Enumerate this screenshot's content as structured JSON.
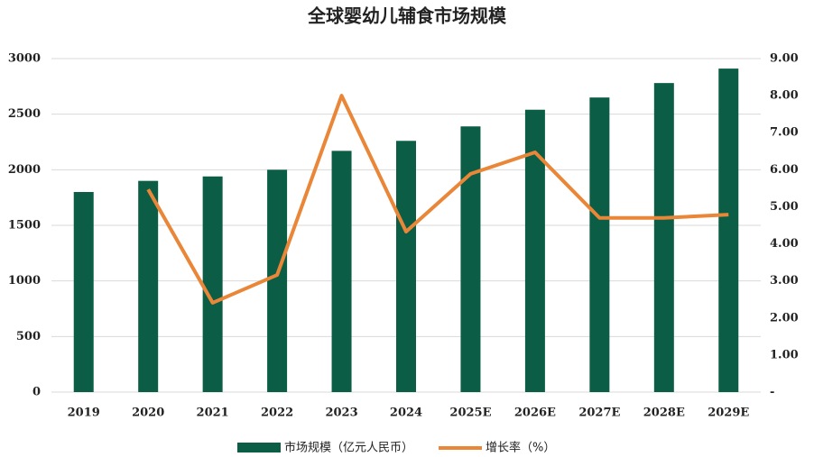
{
  "chart_data": {
    "type": "bar_line",
    "title": "全球婴幼儿辅食市场规模",
    "categories": [
      "2019",
      "2020",
      "2021",
      "2022",
      "2023",
      "2024",
      "2025E",
      "2026E",
      "2027E",
      "2028E",
      "2029E"
    ],
    "series": [
      {
        "name": "市场规模（亿元人民币）",
        "type": "bar",
        "color": "#0b5e45",
        "values": [
          1800,
          1900,
          1940,
          2000,
          2170,
          2260,
          2390,
          2540,
          2650,
          2780,
          2910
        ]
      },
      {
        "name": "增长率（%）",
        "type": "line",
        "axis": "y2",
        "color": "#ea8638",
        "values": [
          null,
          5.47,
          2.41,
          3.16,
          8.0,
          4.33,
          5.89,
          6.47,
          4.7,
          4.7,
          4.79
        ]
      }
    ],
    "ylim": [
      0,
      3000
    ],
    "yticks": [
      0,
      500,
      1000,
      1500,
      2000,
      2500,
      3000
    ],
    "y2lim": [
      0,
      9
    ],
    "y2ticks": [
      {
        "value": 0,
        "label": "-"
      },
      {
        "value": 1,
        "label": "1.00"
      },
      {
        "value": 2,
        "label": "2.00"
      },
      {
        "value": 3,
        "label": "3.00"
      },
      {
        "value": 4,
        "label": "4.00"
      },
      {
        "value": 5,
        "label": "5.00"
      },
      {
        "value": 6,
        "label": "6.00"
      },
      {
        "value": 7,
        "label": "7.00"
      },
      {
        "value": 8,
        "label": "8.00"
      },
      {
        "value": 9,
        "label": "9.00"
      }
    ],
    "grid": true
  }
}
